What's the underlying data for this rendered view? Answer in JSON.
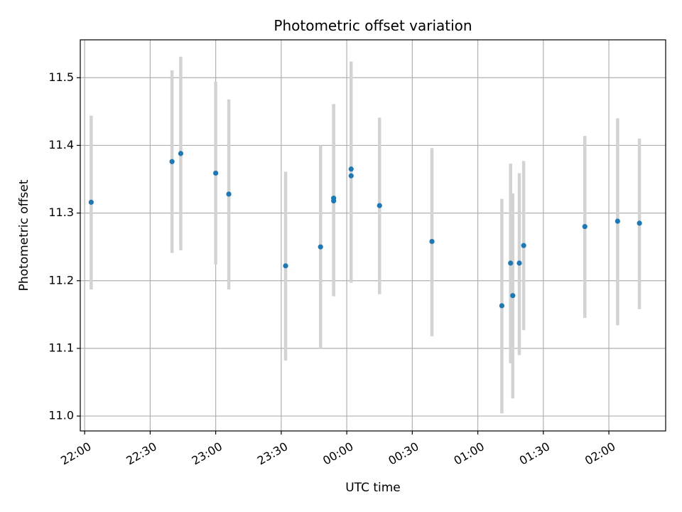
{
  "chart_data": {
    "type": "scatter",
    "title": "Photometric offset variation",
    "xlabel": "UTC time",
    "ylabel": "Photometric offset",
    "x_axis_kind": "time",
    "x_start_label": "22:00",
    "xlim": [
      "21:58",
      "02:26"
    ],
    "ylim": [
      10.978,
      11.556
    ],
    "xticks": [
      "22:00",
      "22:30",
      "23:00",
      "23:30",
      "00:00",
      "00:30",
      "01:00",
      "01:30",
      "02:00"
    ],
    "yticks": [
      11.0,
      11.1,
      11.2,
      11.3,
      11.4,
      11.5
    ],
    "grid": true,
    "legend": "none",
    "colors": {
      "marker": "#1f77b4",
      "errorbar": "#d3d3d3",
      "grid": "#b0b0b0"
    },
    "points": [
      {
        "x": "22:03",
        "y": 11.316,
        "ylow": 11.187,
        "yhigh": 11.444
      },
      {
        "x": "22:40",
        "y": 11.376,
        "ylow": 11.241,
        "yhigh": 11.511
      },
      {
        "x": "22:44",
        "y": 11.388,
        "ylow": 11.245,
        "yhigh": 11.531
      },
      {
        "x": "23:00",
        "y": 11.359,
        "ylow": 11.224,
        "yhigh": 11.494
      },
      {
        "x": "23:06",
        "y": 11.328,
        "ylow": 11.187,
        "yhigh": 11.468
      },
      {
        "x": "23:32",
        "y": 11.222,
        "ylow": 11.082,
        "yhigh": 11.361
      },
      {
        "x": "23:48",
        "y": 11.25,
        "ylow": 11.1,
        "yhigh": 11.4
      },
      {
        "x": "23:54",
        "y": 11.318,
        "ylow": 11.177,
        "yhigh": 11.461
      },
      {
        "x": "23:54",
        "y": 11.322,
        "ylow": 11.183,
        "yhigh": 11.461
      },
      {
        "x": "00:02",
        "y": 11.365,
        "ylow": 11.206,
        "yhigh": 11.524
      },
      {
        "x": "00:02",
        "y": 11.355,
        "ylow": 11.197,
        "yhigh": 11.513
      },
      {
        "x": "00:15",
        "y": 11.311,
        "ylow": 11.18,
        "yhigh": 11.441
      },
      {
        "x": "00:39",
        "y": 11.258,
        "ylow": 11.118,
        "yhigh": 11.396
      },
      {
        "x": "01:11",
        "y": 11.163,
        "ylow": 11.004,
        "yhigh": 11.321
      },
      {
        "x": "01:15",
        "y": 11.226,
        "ylow": 11.078,
        "yhigh": 11.373
      },
      {
        "x": "01:16",
        "y": 11.178,
        "ylow": 11.026,
        "yhigh": 11.329
      },
      {
        "x": "01:19",
        "y": 11.226,
        "ylow": 11.09,
        "yhigh": 11.359
      },
      {
        "x": "01:21",
        "y": 11.252,
        "ylow": 11.127,
        "yhigh": 11.377
      },
      {
        "x": "01:49",
        "y": 11.28,
        "ylow": 11.145,
        "yhigh": 11.414
      },
      {
        "x": "02:04",
        "y": 11.288,
        "ylow": 11.134,
        "yhigh": 11.44
      },
      {
        "x": "02:14",
        "y": 11.285,
        "ylow": 11.158,
        "yhigh": 11.41
      }
    ]
  }
}
